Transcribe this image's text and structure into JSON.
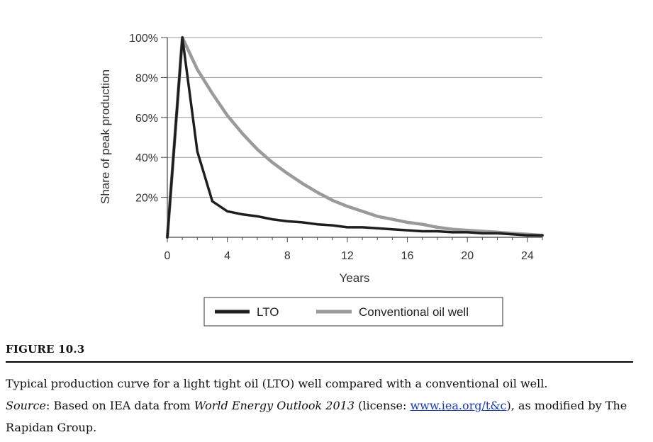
{
  "chart_data": {
    "type": "line",
    "xlabel": "Years",
    "ylabel": "Share of peak production",
    "xlim": [
      0,
      25
    ],
    "ylim": [
      0,
      100
    ],
    "xticks": [
      "0",
      "4",
      "8",
      "12",
      "16",
      "20",
      "24"
    ],
    "yticks": [
      "20%",
      "40%",
      "60%",
      "80%",
      "100%"
    ],
    "grid": "horizontal",
    "legend_position": "bottom",
    "series": [
      {
        "name": "LTO",
        "color": "#1e1e1e",
        "x": [
          0,
          1,
          2,
          3,
          4,
          5,
          6,
          7,
          8,
          9,
          10,
          11,
          12,
          13,
          14,
          15,
          16,
          17,
          18,
          19,
          20,
          21,
          22,
          23,
          24,
          25
        ],
        "y": [
          0,
          100,
          43,
          18,
          13,
          11.5,
          10.5,
          9,
          8,
          7.5,
          6.5,
          6,
          5,
          5,
          4.5,
          4,
          3.5,
          3,
          3,
          2.5,
          2.5,
          2,
          2,
          1.5,
          1,
          1
        ]
      },
      {
        "name": "Conventional oil well",
        "color": "#9a9a9a",
        "x": [
          0,
          1,
          2,
          3,
          4,
          5,
          6,
          7,
          8,
          9,
          10,
          11,
          12,
          13,
          14,
          15,
          16,
          17,
          18,
          19,
          20,
          21,
          22,
          23,
          24,
          25
        ],
        "y": [
          0,
          100,
          84,
          72,
          61,
          52,
          44,
          37.5,
          32,
          27,
          22.5,
          18.5,
          15.5,
          13,
          10.5,
          9,
          7.5,
          6.5,
          5,
          4,
          3.5,
          3,
          2.5,
          2,
          1.5,
          1
        ]
      }
    ]
  },
  "figure": {
    "label": "FIGURE 10.3",
    "caption_line1": "Typical production curve for a light tight oil (LTO) well compared with a conventional oil well.",
    "source_label": "Source",
    "source_prefix": ": Based on IEA data from ",
    "source_title": "World Energy Outlook 2013",
    "license_prefix": " (license: ",
    "license_link": "www.iea.org/t&c",
    "source_suffix": "), as modified by The Rapidan Group."
  }
}
